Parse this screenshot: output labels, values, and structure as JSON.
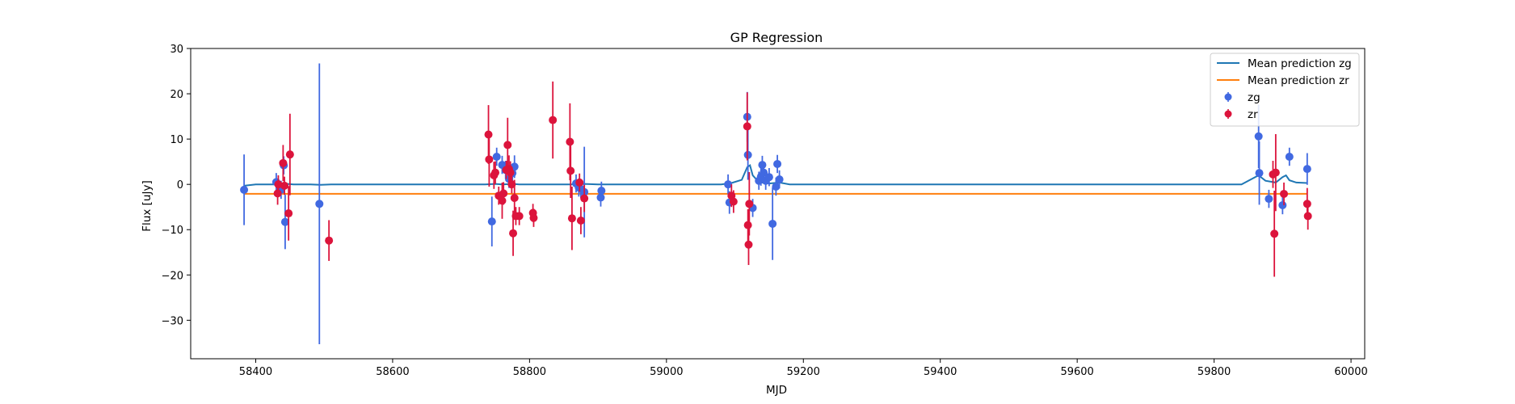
{
  "chart_data": {
    "type": "scatter",
    "title": "GP Regression",
    "xlabel": "MJD",
    "ylabel": "Flux [uJy]",
    "xlim": [
      58305,
      60020
    ],
    "ylim": [
      -38.5,
      30
    ],
    "xticks": [
      58400,
      58600,
      58800,
      59000,
      59200,
      59400,
      59600,
      59800,
      60000
    ],
    "yticks": [
      -30,
      -20,
      -10,
      0,
      10,
      20,
      30
    ],
    "tick_label_text": {
      "x": [
        "58400",
        "58600",
        "58800",
        "59000",
        "59200",
        "59400",
        "59600",
        "59800",
        "60000"
      ],
      "y": [
        "−30",
        "−20",
        "−10",
        "0",
        "10",
        "20",
        "30"
      ]
    },
    "grid": false,
    "legend_position": "top-right",
    "lines": [
      {
        "name": "Mean prediction zg",
        "color": "#1f77b4",
        "x": [
          58383,
          58400,
          58428,
          58440,
          58455,
          58480,
          58495,
          58510,
          58540,
          58600,
          58700,
          58735,
          58750,
          58760,
          58775,
          58785,
          58800,
          58830,
          58860,
          58880,
          58900,
          58920,
          59000,
          59080,
          59095,
          59110,
          59118,
          59122,
          59126,
          59135,
          59150,
          59165,
          59180,
          59300,
          59500,
          59700,
          59840,
          59860,
          59865,
          59875,
          59890,
          59900,
          59905,
          59910,
          59920,
          59936
        ],
        "y": [
          -0.3,
          0,
          0,
          0.2,
          0,
          0,
          -0.1,
          0,
          0,
          0,
          0,
          0,
          0.1,
          0,
          0.1,
          0,
          0,
          0,
          0,
          0.1,
          0,
          0,
          0,
          0,
          0.3,
          1.0,
          3.8,
          4.2,
          2.0,
          0.5,
          0.2,
          0.4,
          0,
          0,
          0,
          0,
          0,
          1.6,
          2.0,
          0.8,
          0.4,
          1.6,
          2.0,
          0.9,
          0.4,
          0.3
        ]
      },
      {
        "name": "Mean prediction zr",
        "color": "#ff7f0e",
        "x": [
          58383,
          59936
        ],
        "y": [
          -2.1,
          -2.1
        ]
      }
    ],
    "series": [
      {
        "name": "zg",
        "color": "#4169e1",
        "x": [
          58383,
          58430,
          58437,
          58441,
          58443,
          58493,
          58745,
          58752,
          58760,
          58765,
          58770,
          58775,
          58778,
          58868,
          58872,
          58875,
          58880,
          58904,
          58905,
          59090,
          59092,
          59118,
          59119,
          59126,
          59135,
          59138,
          59140,
          59142,
          59145,
          59150,
          59155,
          59160,
          59162,
          59165,
          59865,
          59866,
          59880,
          59900,
          59910,
          59936
        ],
        "y": [
          -1.2,
          0.5,
          -1.2,
          4.2,
          -8.3,
          -4.3,
          -8.2,
          6.1,
          4.3,
          3.2,
          1.2,
          2.5,
          3.9,
          0.2,
          -0.7,
          -1.0,
          -1.7,
          -2.9,
          -1.4,
          0.0,
          -4.0,
          14.9,
          6.5,
          -5.2,
          0.8,
          1.7,
          4.3,
          2.6,
          0.8,
          1.6,
          -8.7,
          -0.5,
          4.5,
          1.1,
          10.6,
          2.5,
          -3.2,
          -4.6,
          6.1,
          3.4
        ],
        "err": [
          7.8,
          2.0,
          2.0,
          2.0,
          6.0,
          31.0,
          5.5,
          2.0,
          2.0,
          2.0,
          2.0,
          2.0,
          2.5,
          2.0,
          2.0,
          2.0,
          10.0,
          2.0,
          2.0,
          2.2,
          2.5,
          5.5,
          5.5,
          2.0,
          2.0,
          2.0,
          2.0,
          2.0,
          2.0,
          2.0,
          8.0,
          2.0,
          2.0,
          2.0,
          7.0,
          7.0,
          2.0,
          2.0,
          2.0,
          3.5
        ]
      },
      {
        "name": "zr",
        "color": "#dc143c",
        "x": [
          58432,
          58433,
          58440,
          58442,
          58448,
          58450,
          58507,
          58740,
          58741,
          58748,
          58750,
          58755,
          58760,
          58762,
          58766,
          58768,
          58770,
          58772,
          58774,
          58776,
          58778,
          58780,
          58785,
          58805,
          58806,
          58834,
          58859,
          58860,
          58862,
          58873,
          58875,
          58880,
          59095,
          59098,
          59118,
          59119,
          59120,
          59121,
          59886,
          59888,
          59890,
          59902,
          59936,
          59937
        ],
        "y": [
          -2.0,
          0.0,
          4.7,
          -0.3,
          -6.4,
          6.6,
          -12.4,
          11.0,
          5.5,
          2.0,
          2.6,
          -2.5,
          -3.6,
          -2.0,
          3.2,
          8.7,
          3.4,
          2.6,
          0.0,
          -10.8,
          -3.0,
          -7.0,
          -7.0,
          -6.3,
          -7.4,
          14.2,
          9.4,
          3.0,
          -7.5,
          0.4,
          -8.0,
          -3.1,
          -2.5,
          -3.8,
          12.8,
          -9.0,
          -13.3,
          -4.3,
          2.2,
          -10.9,
          2.6,
          -2.1,
          -4.3,
          -7.0
        ],
        "err": [
          2.5,
          2.0,
          4.0,
          2.0,
          6.0,
          9.0,
          4.5,
          6.5,
          6.0,
          3.0,
          2.5,
          2.0,
          4.0,
          2.5,
          2.0,
          6.0,
          3.0,
          2.5,
          2.0,
          5.0,
          4.0,
          2.0,
          2.0,
          2.0,
          2.0,
          8.5,
          8.5,
          6.0,
          7.0,
          2.0,
          3.0,
          3.0,
          2.5,
          2.5,
          7.5,
          3.5,
          4.5,
          7.0,
          3.0,
          9.5,
          8.5,
          2.5,
          3.5,
          3.0
        ]
      }
    ]
  }
}
